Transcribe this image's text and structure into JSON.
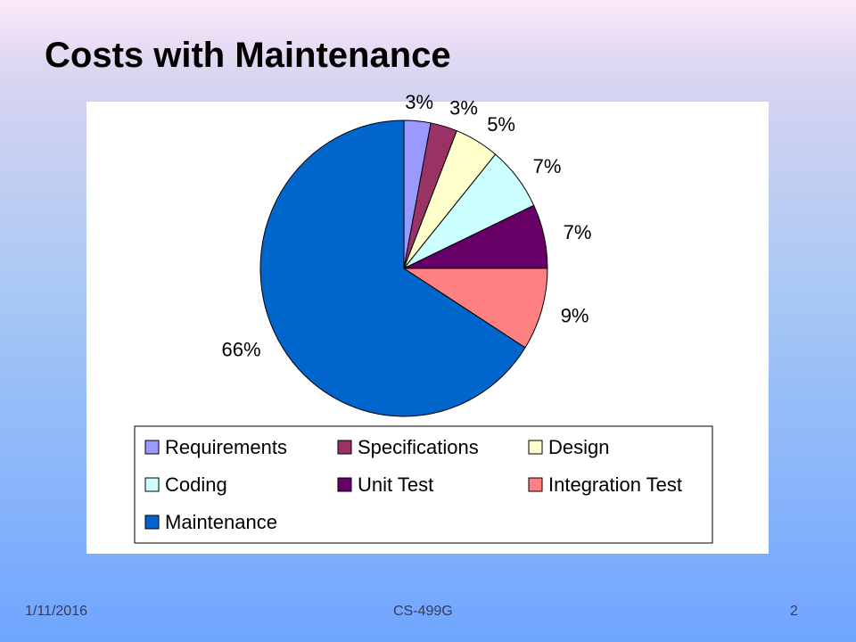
{
  "slide": {
    "title": "Costs with Maintenance"
  },
  "footer": {
    "date": "1/11/2016",
    "course": "CS-499G",
    "page_number": "2"
  },
  "chart_data": {
    "type": "pie",
    "title": "",
    "legend_position": "bottom",
    "slices": [
      {
        "name": "Requirements",
        "value": 3,
        "label": "3%",
        "color": "#9999ff"
      },
      {
        "name": "Specifications",
        "value": 3,
        "label": "3%",
        "color": "#993366"
      },
      {
        "name": "Design",
        "value": 5,
        "label": "5%",
        "color": "#ffffcc"
      },
      {
        "name": "Coding",
        "value": 7,
        "label": "7%",
        "color": "#ccffff"
      },
      {
        "name": "Unit Test",
        "value": 7,
        "label": "7%",
        "color": "#660066"
      },
      {
        "name": "Integration Test",
        "value": 9,
        "label": "9%",
        "color": "#ff8080"
      },
      {
        "name": "Maintenance",
        "value": 66,
        "label": "66%",
        "color": "#0066cc"
      }
    ]
  }
}
